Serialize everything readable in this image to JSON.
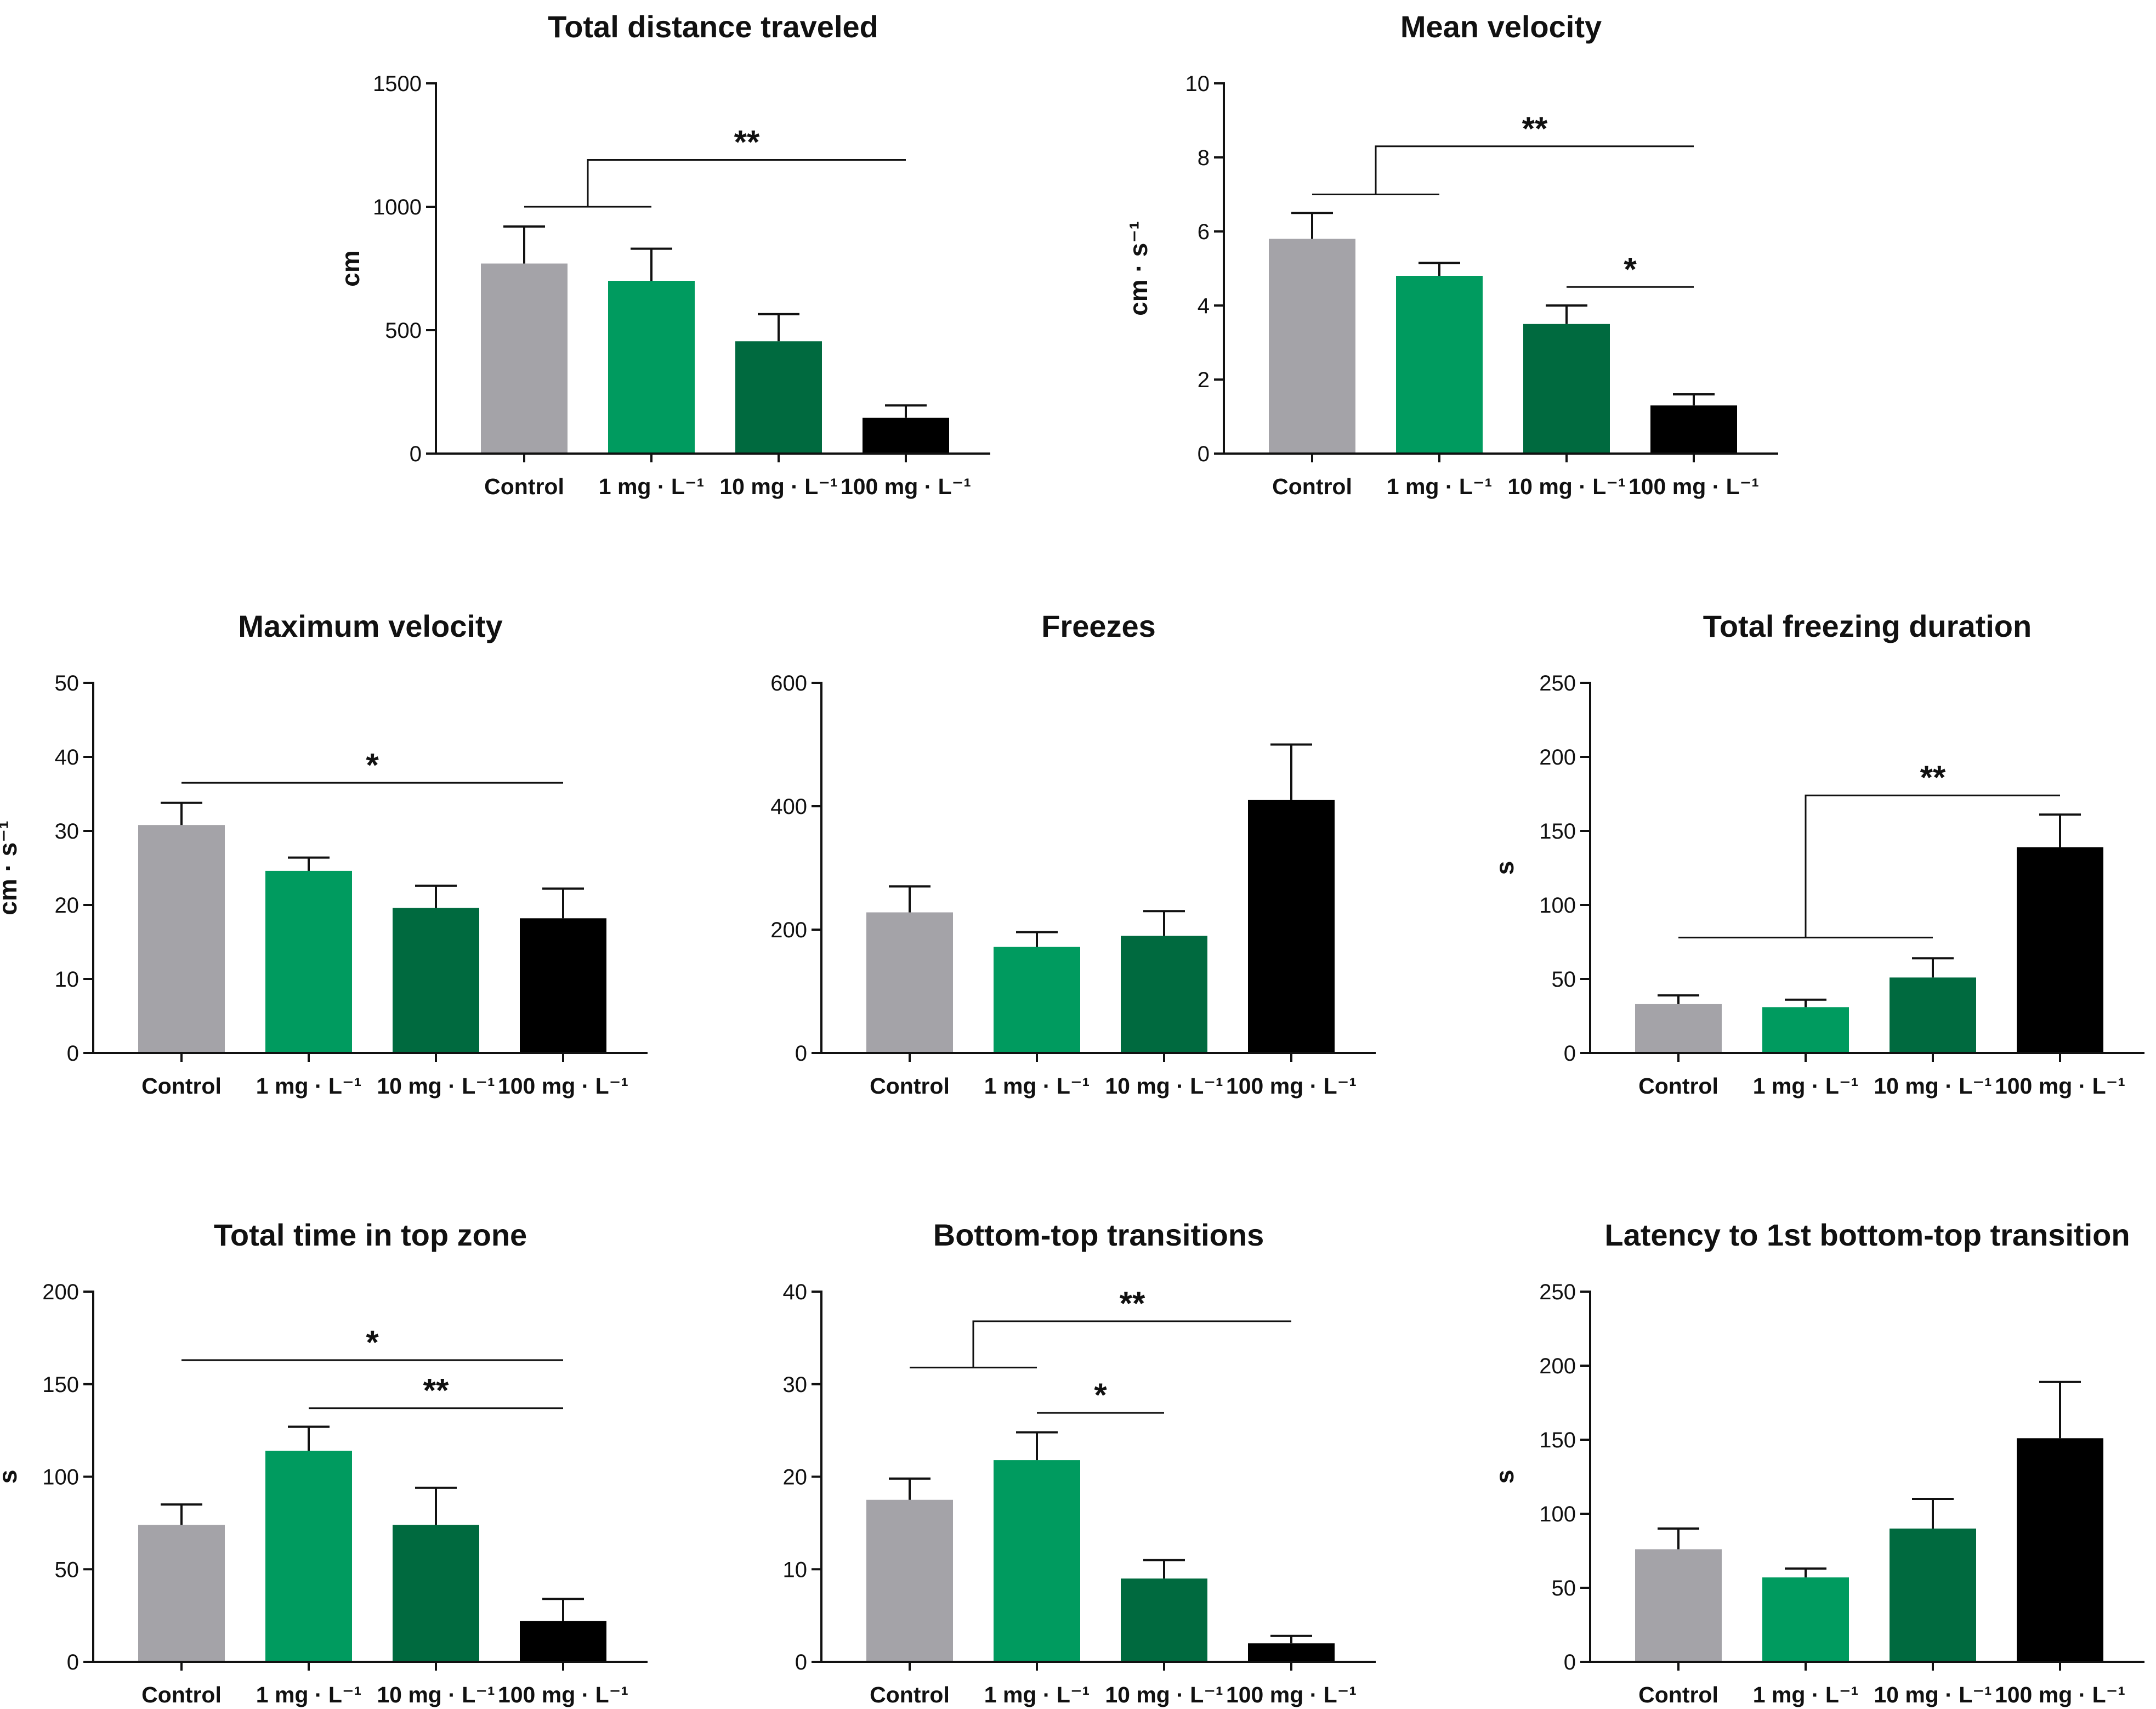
{
  "colors": [
    "#a4a3a8",
    "#009b5f",
    "#006a3f",
    "#000000"
  ],
  "chart_data": [
    {
      "type": "bar",
      "title": "Total distance traveled",
      "ylabel": "cm",
      "categories": [
        "Control",
        "1 mg · L⁻¹",
        "10 mg · L⁻¹",
        "100 mg · L⁻¹"
      ],
      "values": [
        770,
        700,
        455,
        145
      ],
      "errors": [
        150,
        130,
        110,
        50
      ],
      "ylim": [
        0,
        1500
      ],
      "yticks": [
        0,
        500,
        1000,
        1500
      ],
      "annotations": [
        {
          "type": "group",
          "groups": [
            0,
            1
          ],
          "vs": 3,
          "label": "**",
          "y1": 1000,
          "y2": 1190
        }
      ]
    },
    {
      "type": "bar",
      "title": "Mean velocity",
      "ylabel": "cm · s⁻¹",
      "categories": [
        "Control",
        "1 mg · L⁻¹",
        "10 mg · L⁻¹",
        "100 mg · L⁻¹"
      ],
      "values": [
        5.8,
        4.8,
        3.5,
        1.3
      ],
      "errors": [
        0.7,
        0.35,
        0.5,
        0.3
      ],
      "ylim": [
        0,
        10
      ],
      "yticks": [
        0,
        2,
        4,
        6,
        8,
        10
      ],
      "annotations": [
        {
          "type": "group",
          "groups": [
            0,
            1
          ],
          "vs": 3,
          "label": "**",
          "y1": 7.0,
          "y2": 8.3
        },
        {
          "type": "line",
          "from": 2,
          "to": 3,
          "label": "*",
          "y": 4.5
        }
      ]
    },
    {
      "type": "bar",
      "title": "Maximum velocity",
      "ylabel": "cm · s⁻¹",
      "categories": [
        "Control",
        "1 mg · L⁻¹",
        "10 mg · L⁻¹",
        "100 mg · L⁻¹"
      ],
      "values": [
        30.8,
        24.6,
        19.6,
        18.2
      ],
      "errors": [
        3.0,
        1.8,
        3.0,
        4.0
      ],
      "ylim": [
        0,
        50
      ],
      "yticks": [
        0,
        10,
        20,
        30,
        40,
        50
      ],
      "annotations": [
        {
          "type": "line",
          "from": 0,
          "to": 3,
          "label": "*",
          "y": 36.5
        }
      ]
    },
    {
      "type": "bar",
      "title": "Freezes",
      "ylabel": "",
      "categories": [
        "Control",
        "1 mg · L⁻¹",
        "10 mg · L⁻¹",
        "100 mg · L⁻¹"
      ],
      "values": [
        228,
        172,
        190,
        410
      ],
      "errors": [
        42,
        24,
        40,
        90
      ],
      "ylim": [
        0,
        600
      ],
      "yticks": [
        0,
        200,
        400,
        600
      ],
      "annotations": []
    },
    {
      "type": "bar",
      "title": "Total freezing duration",
      "ylabel": "s",
      "categories": [
        "Control",
        "1 mg · L⁻¹",
        "10 mg · L⁻¹",
        "100 mg · L⁻¹"
      ],
      "values": [
        33,
        31,
        51,
        139
      ],
      "errors": [
        6,
        5,
        13,
        22
      ],
      "ylim": [
        0,
        250
      ],
      "yticks": [
        0,
        50,
        100,
        150,
        200,
        250
      ],
      "annotations": [
        {
          "type": "group",
          "groups": [
            0,
            2
          ],
          "vs": 3,
          "label": "**",
          "y1": 78,
          "y2": 174
        }
      ]
    },
    {
      "type": "bar",
      "title": "Total time in top zone",
      "ylabel": "s",
      "categories": [
        "Control",
        "1 mg · L⁻¹",
        "10 mg · L⁻¹",
        "100 mg · L⁻¹"
      ],
      "values": [
        74,
        114,
        74,
        22
      ],
      "errors": [
        11,
        13,
        20,
        12
      ],
      "ylim": [
        0,
        200
      ],
      "yticks": [
        0,
        50,
        100,
        150,
        200
      ],
      "annotations": [
        {
          "type": "line",
          "from": 0,
          "to": 3,
          "label": "*",
          "y": 163
        },
        {
          "type": "line",
          "from": 1,
          "to": 3,
          "label": "**",
          "y": 137
        }
      ]
    },
    {
      "type": "bar",
      "title": "Bottom-top transitions",
      "ylabel": "",
      "categories": [
        "Control",
        "1 mg · L⁻¹",
        "10 mg · L⁻¹",
        "100 mg · L⁻¹"
      ],
      "values": [
        17.5,
        21.8,
        9.0,
        2.0
      ],
      "errors": [
        2.3,
        3.0,
        2.0,
        0.8
      ],
      "ylim": [
        0,
        40
      ],
      "yticks": [
        0,
        10,
        20,
        30,
        40
      ],
      "annotations": [
        {
          "type": "group",
          "groups": [
            0,
            1
          ],
          "vs": 3,
          "label": "**",
          "y1": 31.8,
          "y2": 36.8
        },
        {
          "type": "line",
          "from": 1,
          "to": 2,
          "label": "*",
          "y": 26.9
        }
      ]
    },
    {
      "type": "bar",
      "title": "Latency to 1st bottom-top transition",
      "ylabel": "s",
      "categories": [
        "Control",
        "1 mg · L⁻¹",
        "10 mg · L⁻¹",
        "100 mg · L⁻¹"
      ],
      "values": [
        76,
        57,
        90,
        151
      ],
      "errors": [
        14,
        6,
        20,
        38
      ],
      "ylim": [
        0,
        250
      ],
      "yticks": [
        0,
        50,
        100,
        150,
        200,
        250
      ],
      "annotations": []
    }
  ]
}
